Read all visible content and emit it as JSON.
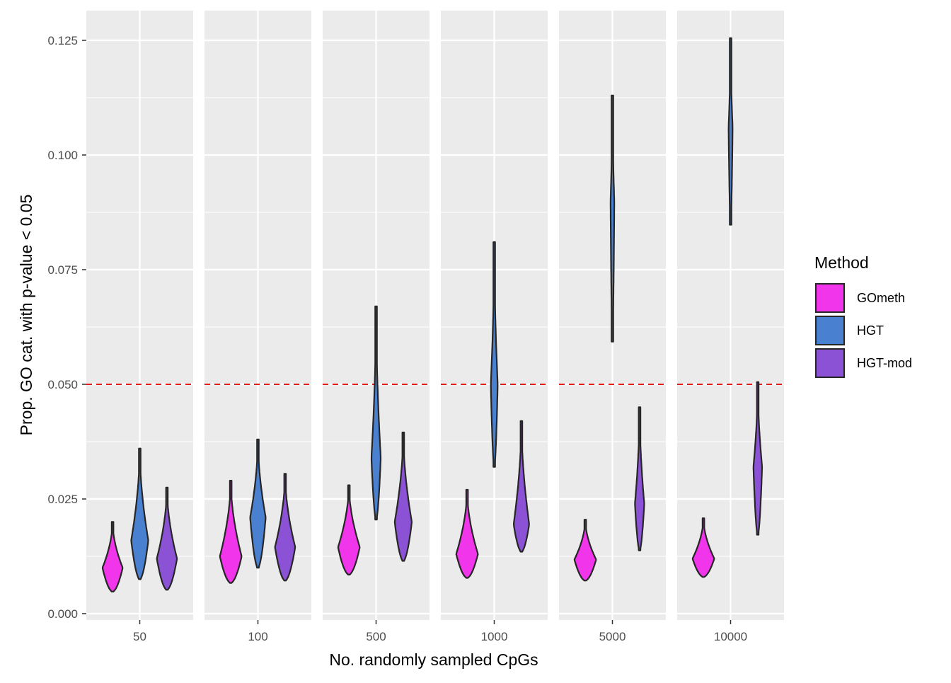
{
  "chart_data": {
    "type": "violin",
    "xlabel": "No. randomly sampled CpGs",
    "ylabel": "Prop. GO cat. with p-value < 0.05",
    "ylim": [
      0.0,
      0.13
    ],
    "yticks": [
      "0.000",
      "0.025",
      "0.050",
      "0.075",
      "0.100",
      "0.125"
    ],
    "ytick_values": [
      0.0,
      0.025,
      0.05,
      0.075,
      0.1,
      0.125
    ],
    "panels": [
      "50",
      "100",
      "500",
      "1000",
      "5000",
      "10000"
    ],
    "reference_line": {
      "y": 0.05,
      "color": "#e41a1c",
      "style": "dashed"
    },
    "legend": {
      "title": "Method",
      "position": "right",
      "entries": [
        {
          "name": "GOmeth",
          "color": "#f035ea"
        },
        {
          "name": "HGT",
          "color": "#4a80d0"
        },
        {
          "name": "HGT-mod",
          "color": "#8b52d6"
        }
      ]
    },
    "series": [
      {
        "name": "GOmeth",
        "color": "#f035ea",
        "violins": [
          {
            "min": 0.0048,
            "max": 0.02,
            "mode": 0.01,
            "spread": 0.65
          },
          {
            "min": 0.0067,
            "max": 0.029,
            "mode": 0.0125,
            "spread": 0.7
          },
          {
            "min": 0.0085,
            "max": 0.028,
            "mode": 0.0145,
            "spread": 0.7
          },
          {
            "min": 0.0078,
            "max": 0.027,
            "mode": 0.013,
            "spread": 0.7
          },
          {
            "min": 0.0072,
            "max": 0.0205,
            "mode": 0.0118,
            "spread": 0.7
          },
          {
            "min": 0.008,
            "max": 0.0208,
            "mode": 0.012,
            "spread": 0.7
          }
        ]
      },
      {
        "name": "HGT",
        "color": "#4a80d0",
        "violins": [
          {
            "min": 0.0075,
            "max": 0.036,
            "mode": 0.016,
            "spread": 0.55
          },
          {
            "min": 0.01,
            "max": 0.038,
            "mode": 0.021,
            "spread": 0.5
          },
          {
            "min": 0.0205,
            "max": 0.067,
            "mode": 0.034,
            "spread": 0.3
          },
          {
            "min": 0.032,
            "max": 0.081,
            "mode": 0.05,
            "spread": 0.22
          },
          {
            "min": 0.0593,
            "max": 0.113,
            "mode": 0.09,
            "spread": 0.12
          },
          {
            "min": 0.0848,
            "max": 0.1255,
            "mode": 0.106,
            "spread": 0.13
          }
        ]
      },
      {
        "name": "HGT-mod",
        "color": "#8b52d6",
        "violins": [
          {
            "min": 0.0052,
            "max": 0.0275,
            "mode": 0.012,
            "spread": 0.65
          },
          {
            "min": 0.0072,
            "max": 0.0305,
            "mode": 0.0145,
            "spread": 0.65
          },
          {
            "min": 0.0115,
            "max": 0.0395,
            "mode": 0.02,
            "spread": 0.55
          },
          {
            "min": 0.0135,
            "max": 0.042,
            "mode": 0.0195,
            "spread": 0.5
          },
          {
            "min": 0.0138,
            "max": 0.045,
            "mode": 0.024,
            "spread": 0.3
          },
          {
            "min": 0.0172,
            "max": 0.0505,
            "mode": 0.032,
            "spread": 0.28
          }
        ]
      }
    ]
  }
}
